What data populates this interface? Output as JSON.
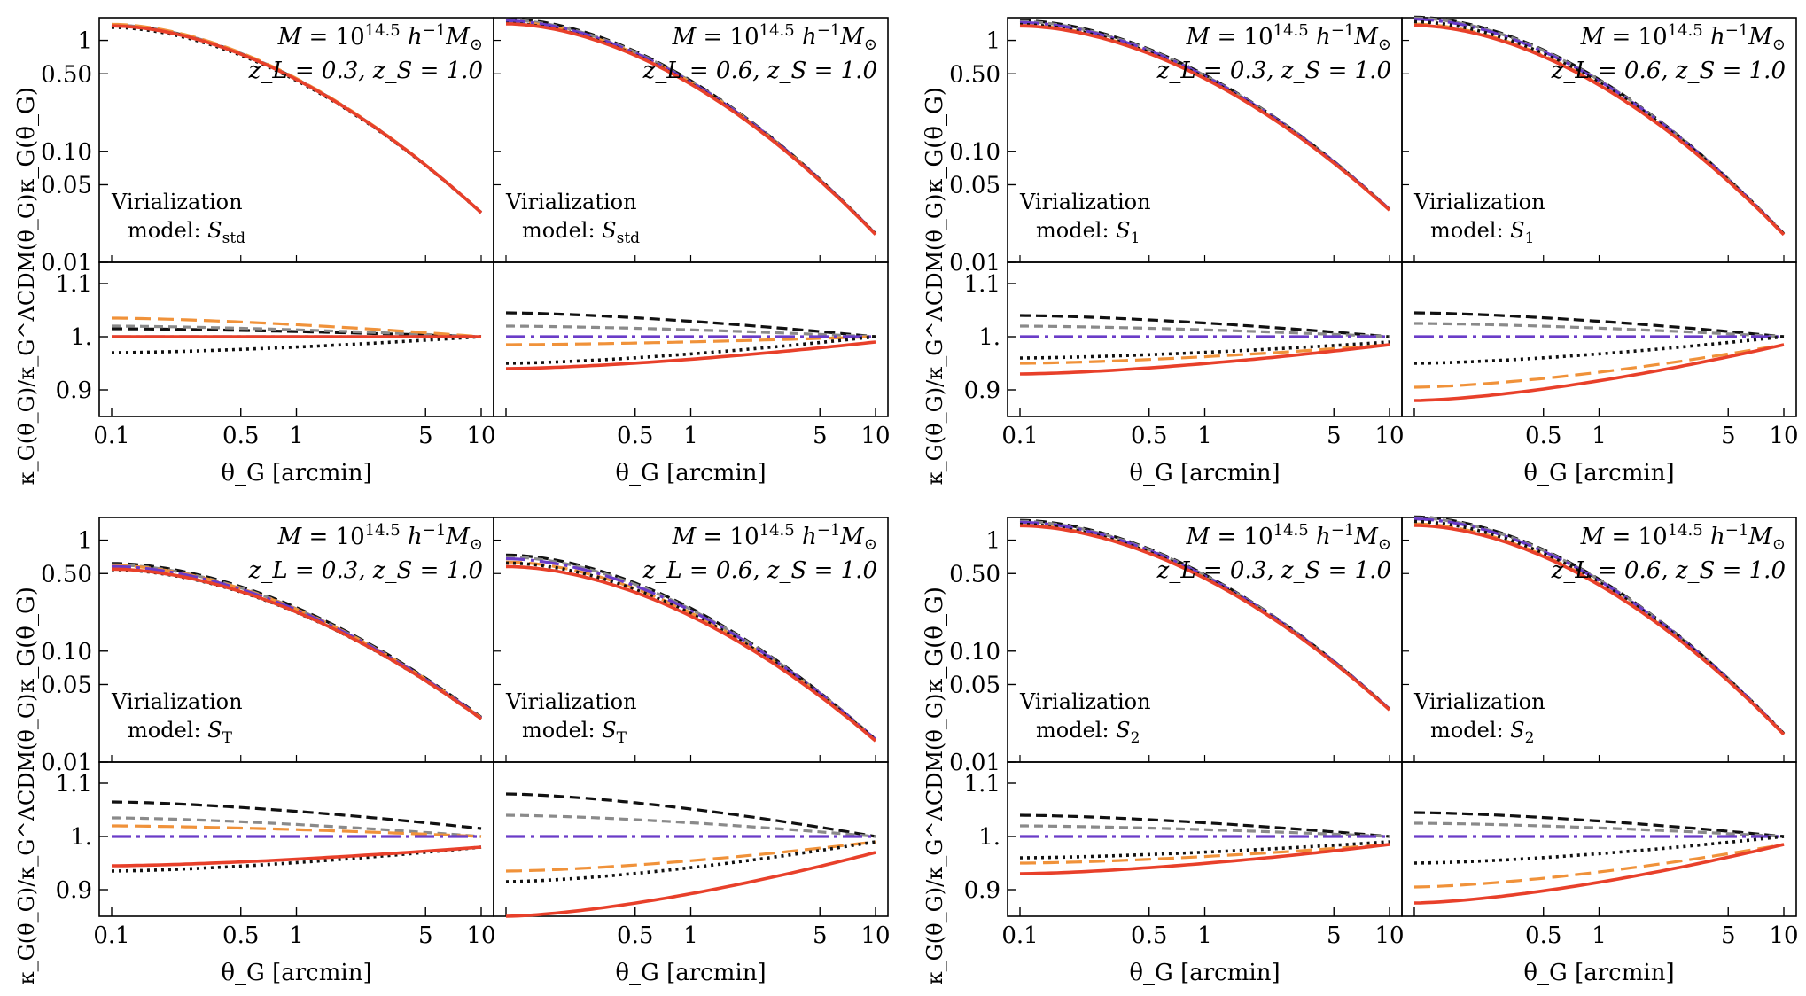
{
  "axis_labels": {
    "top_y_html": "κ<tspan font-style='italic' dy='0'>_G</tspan>(θ<tspan>_G</tspan>)",
    "top_y": "κ_G(θ_G)",
    "bottom_y": "κ_G(θ_G)/κ_G^ΛCDM(θ_G)",
    "x": "θ_G [arcmin]"
  },
  "ticks": {
    "top_y": [
      {
        "v": 1,
        "label": "1"
      },
      {
        "v": 0.5,
        "label": "0.50"
      },
      {
        "v": 0.1,
        "label": "0.10"
      },
      {
        "v": 0.05,
        "label": "0.05"
      },
      {
        "v": 0.01,
        "label": "0.01"
      }
    ],
    "bottom_y": [
      {
        "v": 1.1,
        "label": "1.1"
      },
      {
        "v": 1.0,
        "label": "1."
      },
      {
        "v": 0.9,
        "label": "0.9"
      }
    ],
    "x": [
      {
        "v": 0.1,
        "label": "0.1"
      },
      {
        "v": 0.5,
        "label": "0.5"
      },
      {
        "v": 1,
        "label": "1"
      },
      {
        "v": 5,
        "label": "5"
      },
      {
        "v": 10,
        "label": "10"
      }
    ]
  },
  "annotations": {
    "mass": "M = 10^14.5 h^-1 M_⊙",
    "z_panel_a": "z_L = 0.3, z_S = 1.0",
    "z_panel_b": "z_L = 0.6, z_S = 1.0",
    "virialization": "Virialization",
    "model_prefix": "model:"
  },
  "colors": {
    "black_dashed": "#111111",
    "gray_dashed": "#8a8a8a",
    "orange_dashed": "#f0923a",
    "blue_purple_dashdot": "#6a3cc8",
    "black_dotted": "#111111",
    "red_solid": "#e8402a"
  },
  "chart_data": [
    {
      "type": "line",
      "group": "top-left",
      "model": "S_std",
      "model_sub": "std",
      "x_range": [
        0.1,
        10
      ],
      "top_ylim": [
        0.01,
        1.6
      ],
      "bottom_ylim": [
        0.85,
        1.14
      ],
      "log_axes": true,
      "panels": [
        {
          "lens": "z_L = 0.3, z_S = 1.0",
          "kappa_start": 1.35,
          "kappa_end": 0.028,
          "ratio": {
            "black_dashed": [
              1.015,
              1.0
            ],
            "gray_dashed": [
              1.02,
              1.0
            ],
            "orange_dashed": [
              1.035,
              1.0
            ],
            "blue_dashdot": [
              1.0,
              1.0
            ],
            "black_dotted": [
              0.97,
              1.0
            ],
            "red_solid": [
              1.0,
              1.0
            ]
          }
        },
        {
          "lens": "z_L = 0.6, z_S = 1.0",
          "kappa_start": 1.5,
          "kappa_end": 0.018,
          "ratio": {
            "black_dashed": [
              1.045,
              1.0
            ],
            "gray_dashed": [
              1.02,
              1.0
            ],
            "orange_dashed": [
              0.985,
              1.0
            ],
            "blue_dashdot": [
              1.0,
              1.0
            ],
            "black_dotted": [
              0.95,
              1.0
            ],
            "red_solid": [
              0.94,
              0.99
            ]
          }
        }
      ]
    },
    {
      "type": "line",
      "group": "top-right",
      "model": "S_1",
      "model_sub": "1",
      "x_range": [
        0.1,
        10
      ],
      "top_ylim": [
        0.01,
        1.6
      ],
      "bottom_ylim": [
        0.85,
        1.14
      ],
      "log_axes": true,
      "panels": [
        {
          "lens": "z_L = 0.3, z_S = 1.0",
          "kappa_start": 1.45,
          "kappa_end": 0.03,
          "ratio": {
            "black_dashed": [
              1.04,
              1.0
            ],
            "gray_dashed": [
              1.02,
              1.0
            ],
            "orange_dashed": [
              0.95,
              0.985
            ],
            "blue_dashdot": [
              1.0,
              1.0
            ],
            "black_dotted": [
              0.96,
              0.99
            ],
            "red_solid": [
              0.93,
              0.985
            ]
          }
        },
        {
          "lens": "z_L = 0.6, z_S = 1.0",
          "kappa_start": 1.55,
          "kappa_end": 0.018,
          "ratio": {
            "black_dashed": [
              1.045,
              1.0
            ],
            "gray_dashed": [
              1.025,
              1.0
            ],
            "orange_dashed": [
              0.905,
              0.985
            ],
            "blue_dashdot": [
              1.0,
              1.0
            ],
            "black_dotted": [
              0.95,
              1.0
            ],
            "red_solid": [
              0.88,
              0.985
            ]
          }
        }
      ]
    },
    {
      "type": "line",
      "group": "bottom-left",
      "model": "S_T",
      "model_sub": "T",
      "x_range": [
        0.1,
        10
      ],
      "top_ylim": [
        0.01,
        1.6
      ],
      "bottom_ylim": [
        0.85,
        1.14
      ],
      "log_axes": true,
      "panels": [
        {
          "lens": "z_L = 0.3, z_S = 1.0",
          "kappa_start": 0.58,
          "kappa_end": 0.025,
          "ratio": {
            "black_dashed": [
              1.065,
              1.015
            ],
            "gray_dashed": [
              1.035,
              1.0
            ],
            "orange_dashed": [
              1.02,
              1.0
            ],
            "blue_dashdot": [
              1.0,
              1.0
            ],
            "black_dotted": [
              0.935,
              0.98
            ],
            "red_solid": [
              0.945,
              0.98
            ]
          }
        },
        {
          "lens": "z_L = 0.6, z_S = 1.0",
          "kappa_start": 0.68,
          "kappa_end": 0.016,
          "ratio": {
            "black_dashed": [
              1.08,
              1.0
            ],
            "gray_dashed": [
              1.04,
              1.0
            ],
            "orange_dashed": [
              0.935,
              0.99
            ],
            "blue_dashdot": [
              1.0,
              1.0
            ],
            "black_dotted": [
              0.915,
              0.99
            ],
            "red_solid": [
              0.85,
              0.97
            ]
          }
        }
      ]
    },
    {
      "type": "line",
      "group": "bottom-right",
      "model": "S_2",
      "model_sub": "2",
      "x_range": [
        0.1,
        10
      ],
      "top_ylim": [
        0.01,
        1.6
      ],
      "bottom_ylim": [
        0.85,
        1.14
      ],
      "log_axes": true,
      "panels": [
        {
          "lens": "z_L = 0.3, z_S = 1.0",
          "kappa_start": 1.45,
          "kappa_end": 0.03,
          "ratio": {
            "black_dashed": [
              1.04,
              1.0
            ],
            "gray_dashed": [
              1.02,
              1.0
            ],
            "orange_dashed": [
              0.95,
              0.985
            ],
            "blue_dashdot": [
              1.0,
              1.0
            ],
            "black_dotted": [
              0.96,
              0.99
            ],
            "red_solid": [
              0.93,
              0.985
            ]
          }
        },
        {
          "lens": "z_L = 0.6, z_S = 1.0",
          "kappa_start": 1.55,
          "kappa_end": 0.018,
          "ratio": {
            "black_dashed": [
              1.045,
              1.0
            ],
            "gray_dashed": [
              1.025,
              1.0
            ],
            "orange_dashed": [
              0.905,
              0.985
            ],
            "blue_dashdot": [
              1.0,
              1.0
            ],
            "black_dotted": [
              0.95,
              1.0
            ],
            "red_solid": [
              0.875,
              0.985
            ]
          }
        }
      ]
    }
  ]
}
